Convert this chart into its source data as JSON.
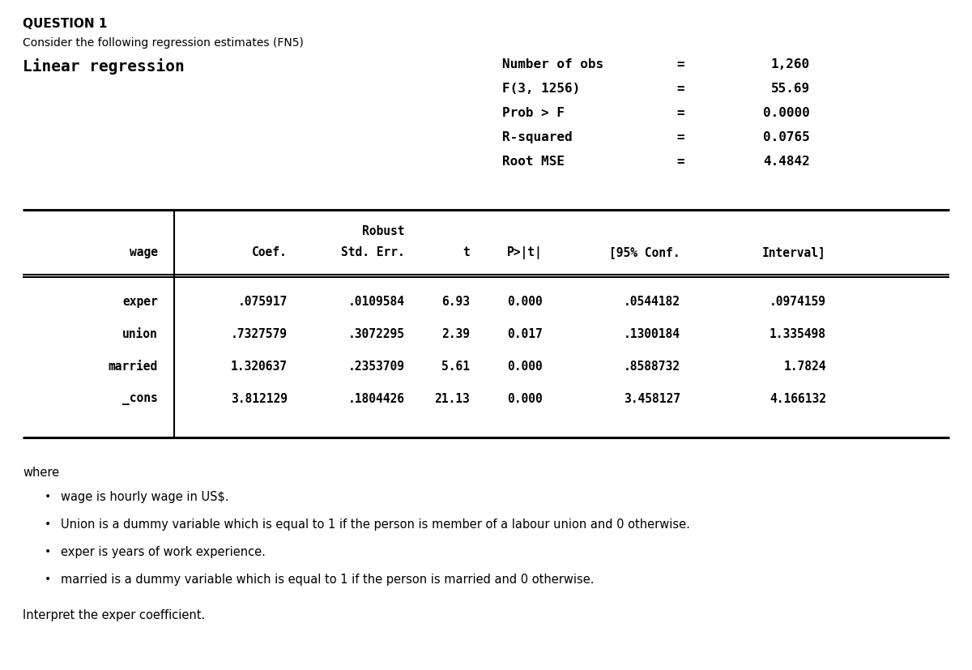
{
  "title": "QUESTION 1",
  "subtitle": "Consider the following regression estimates (FN5)",
  "regression_title": "Linear regression",
  "stats_labels": [
    "Number of obs",
    "F(3, 1256)",
    "Prob > F",
    "R-squared",
    "Root MSE"
  ],
  "stats_values": [
    "1,260",
    "55.69",
    "0.0000",
    "0.0765",
    "4.4842"
  ],
  "robust_label": "Robust",
  "col_headers_line1": [
    "",
    "",
    "Robust",
    "",
    "",
    "",
    ""
  ],
  "col_headers_line2": [
    "wage",
    "Coef.",
    "Std. Err.",
    "t",
    "P>|t|",
    "[95% Conf.",
    "Interval]"
  ],
  "rows": [
    [
      "exper",
      ".075917",
      ".0109584",
      "6.93",
      "0.000",
      ".0544182",
      ".0974159"
    ],
    [
      "union",
      ".7327579",
      ".3072295",
      "2.39",
      "0.017",
      ".1300184",
      "1.335498"
    ],
    [
      "married",
      "1.320637",
      ".2353709",
      "5.61",
      "0.000",
      ".8588732",
      "1.7824"
    ],
    [
      "_cons",
      "3.812129",
      ".1804426",
      "21.13",
      "0.000",
      "3.458127",
      "4.166132"
    ]
  ],
  "where_label": "where",
  "bullets": [
    "wage is hourly wage in US$.",
    "Union is a dummy variable which is equal to 1 if the person is member of a labour union and 0 otherwise.",
    "exper is years of work experience.",
    "married is a dummy variable which is equal to 1 if the person is married and 0 otherwise."
  ],
  "question": "Interpret the exper coefficient.",
  "bg_color": "#ffffff",
  "text_color": "#000000",
  "mono_font": "DejaVu Sans Mono",
  "sans_font": "DejaVu Sans"
}
